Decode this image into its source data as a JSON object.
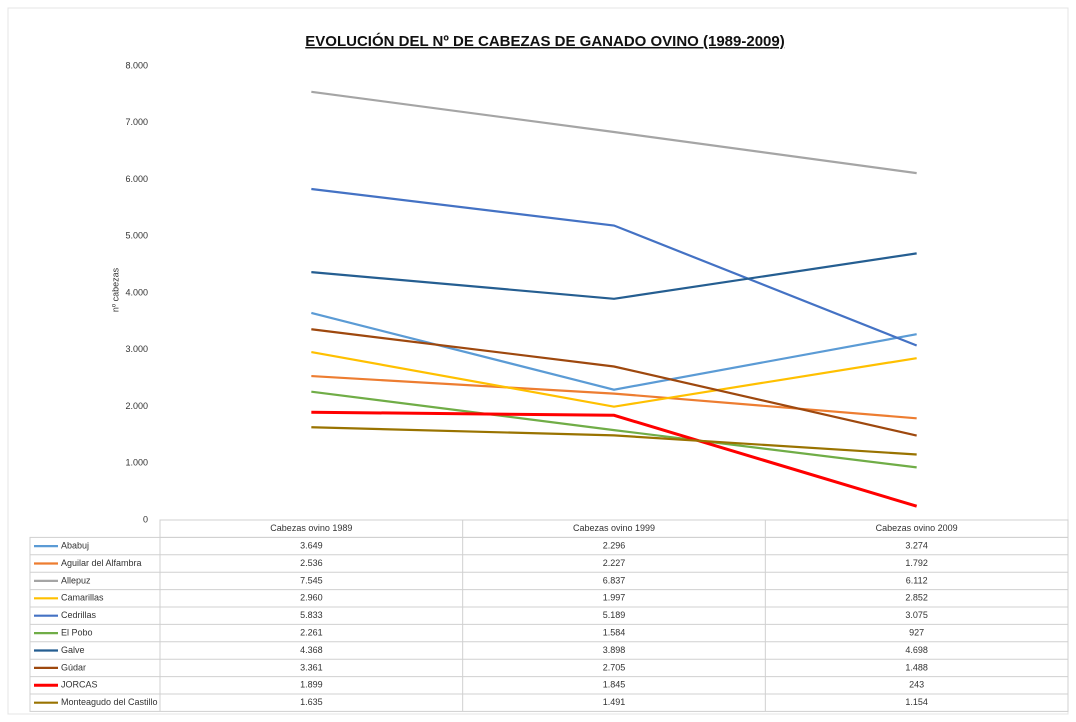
{
  "chart_data": {
    "type": "line",
    "title": "EVOLUCIÓN DEL Nº DE CABEZAS DE GANADO OVINO (1989-2009)",
    "y_label": "nº cabezas",
    "categories": [
      "Cabezas ovino 1989",
      "Cabezas ovino 1999",
      "Cabezas ovino 2009"
    ],
    "ylim": [
      0,
      8000
    ],
    "yticks": [
      0,
      {
        "value": 1000,
        "label": "1.000"
      },
      {
        "value": 2000,
        "label": "2.000"
      },
      {
        "value": 3000,
        "label": "3.000"
      },
      {
        "value": 4000,
        "label": "4.000"
      },
      {
        "value": 5000,
        "label": "5.000"
      },
      {
        "value": 6000,
        "label": "6.000"
      },
      {
        "value": 7000,
        "label": "7.000"
      },
      {
        "value": 8000,
        "label": "8.000"
      }
    ],
    "grid": false,
    "series": [
      {
        "name": "Ababuj",
        "color": "#5b9bd5",
        "values": [
          3649,
          2296,
          3274
        ],
        "value_labels": [
          "3.649",
          "2.296",
          "3.274"
        ]
      },
      {
        "name": "Aguilar del Alfambra",
        "color": "#ed7d31",
        "values": [
          2536,
          2227,
          1792
        ],
        "value_labels": [
          "2.536",
          "2.227",
          "1.792"
        ]
      },
      {
        "name": "Allepuz",
        "color": "#a5a5a5",
        "values": [
          7545,
          6837,
          6112
        ],
        "value_labels": [
          "7.545",
          "6.837",
          "6.112"
        ]
      },
      {
        "name": "Camarillas",
        "color": "#ffc000",
        "values": [
          2960,
          1997,
          2852
        ],
        "value_labels": [
          "2.960",
          "1.997",
          "2.852"
        ]
      },
      {
        "name": "Cedrillas",
        "color": "#4472c4",
        "values": [
          5833,
          5189,
          3075
        ],
        "value_labels": [
          "5.833",
          "5.189",
          "3.075"
        ]
      },
      {
        "name": "El Pobo",
        "color": "#70ad47",
        "values": [
          2261,
          1584,
          927
        ],
        "value_labels": [
          "2.261",
          "1.584",
          "927"
        ]
      },
      {
        "name": "Galve",
        "color": "#255e91",
        "values": [
          4368,
          3898,
          4698
        ],
        "value_labels": [
          "4.368",
          "3.898",
          "4.698"
        ]
      },
      {
        "name": "Gúdar",
        "color": "#9e480e",
        "values": [
          3361,
          2705,
          1488
        ],
        "value_labels": [
          "3.361",
          "2.705",
          "1.488"
        ]
      },
      {
        "name": "JORCAS",
        "color": "#ff0000",
        "values": [
          1899,
          1845,
          243
        ],
        "value_labels": [
          "1.899",
          "1.845",
          "243"
        ]
      },
      {
        "name": "Monteagudo del Castillo",
        "color": "#997300",
        "values": [
          1635,
          1491,
          1154
        ],
        "value_labels": [
          "1.635",
          "1.491",
          "1.154"
        ]
      }
    ]
  }
}
